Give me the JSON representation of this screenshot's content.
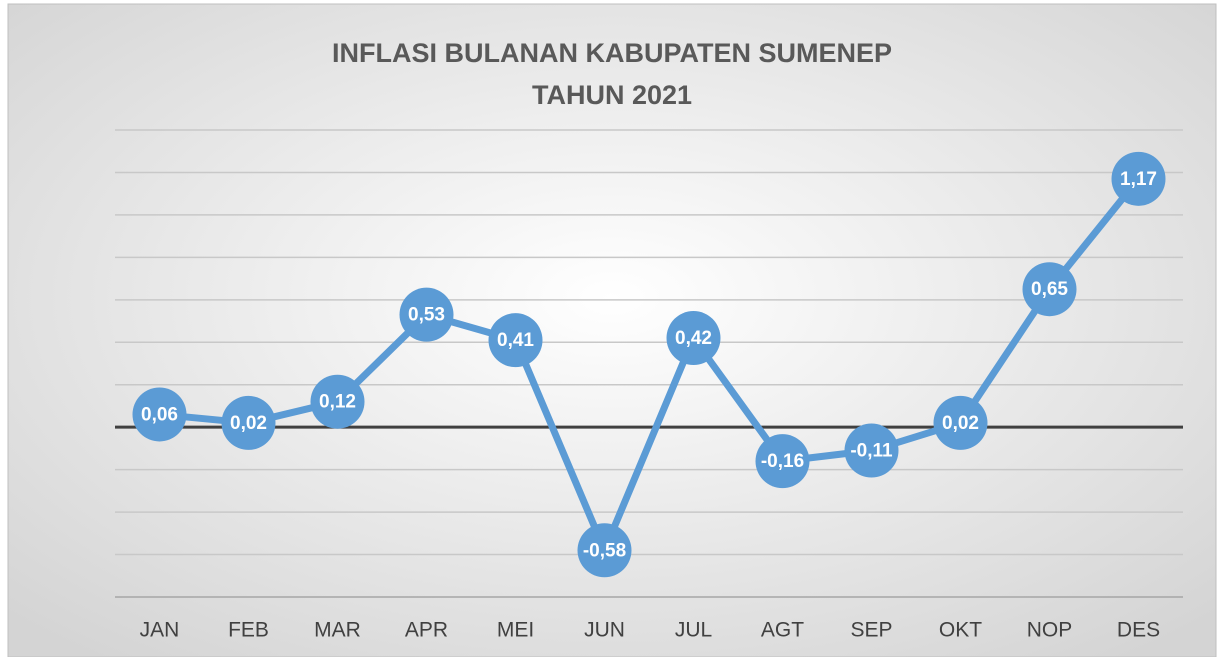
{
  "chart_data": {
    "type": "line",
    "title": "INFLASI BULANAN KABUPATEN SUMENEP",
    "subtitle": "TAHUN 2021",
    "categories": [
      "JAN",
      "FEB",
      "MAR",
      "APR",
      "MEI",
      "JUN",
      "JUL",
      "AGT",
      "SEP",
      "OKT",
      "NOP",
      "DES"
    ],
    "values": [
      0.06,
      0.02,
      0.12,
      0.53,
      0.41,
      -0.58,
      0.42,
      -0.16,
      -0.11,
      0.02,
      0.65,
      1.17
    ],
    "value_labels": [
      "0,06",
      "0,02",
      "0,12",
      "0,53",
      "0,41",
      "-0,58",
      "0,42",
      "-0,16",
      "-0,11",
      "0,02",
      "0,65",
      "1,17"
    ],
    "color": "#5b9bd5",
    "ylim": [
      -0.8,
      1.4
    ],
    "yticks": [
      -0.8,
      -0.6,
      -0.4,
      -0.2,
      0,
      0.2,
      0.4,
      0.6,
      0.8,
      1,
      1.2,
      1.4
    ],
    "grid": true
  }
}
